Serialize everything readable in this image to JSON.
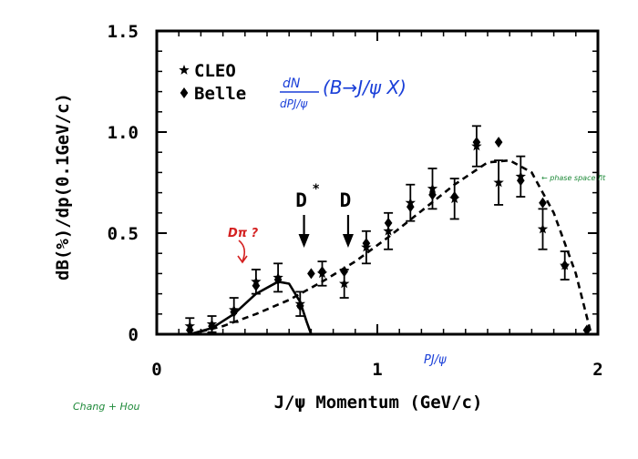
{
  "chart_data": {
    "type": "scatter",
    "xlabel": "J/ψ Momentum (GeV/c)",
    "ylabel": "dB(%)/dp(0.1GeV/c)",
    "xlim": [
      0,
      2
    ],
    "ylim": [
      0,
      1.5
    ],
    "x_ticks": [
      {
        "value": 0,
        "label": "0"
      },
      {
        "value": 1,
        "label": "1"
      },
      {
        "value": 2,
        "label": "2"
      }
    ],
    "y_ticks": [
      {
        "value": 0,
        "label": "0"
      },
      {
        "value": 0.5,
        "label": "0.5"
      },
      {
        "value": 1.0,
        "label": "1.0"
      },
      {
        "value": 1.5,
        "label": "1.5"
      }
    ],
    "grid": false,
    "legend_position": "top-left",
    "series": [
      {
        "name": "CLEO",
        "marker": "star",
        "points": [
          {
            "x": 0.15,
            "y": 0.04,
            "err": 0.04
          },
          {
            "x": 0.25,
            "y": 0.05,
            "err": 0.04
          },
          {
            "x": 0.35,
            "y": 0.12,
            "err": 0.06
          },
          {
            "x": 0.45,
            "y": 0.26,
            "err": 0.06
          },
          {
            "x": 0.55,
            "y": 0.28,
            "err": 0.07
          },
          {
            "x": 0.65,
            "y": 0.15,
            "err": 0.06
          },
          {
            "x": 0.75,
            "y": 0.3,
            "err": 0.06
          },
          {
            "x": 0.85,
            "y": 0.25,
            "err": 0.07
          },
          {
            "x": 0.95,
            "y": 0.43,
            "err": 0.08
          },
          {
            "x": 1.05,
            "y": 0.51,
            "err": 0.09
          },
          {
            "x": 1.15,
            "y": 0.65,
            "err": 0.09
          },
          {
            "x": 1.25,
            "y": 0.72,
            "err": 0.1
          },
          {
            "x": 1.35,
            "y": 0.67,
            "err": 0.1
          },
          {
            "x": 1.45,
            "y": 0.93,
            "err": 0.1
          },
          {
            "x": 1.55,
            "y": 0.75,
            "err": 0.11
          },
          {
            "x": 1.65,
            "y": 0.78,
            "err": 0.1
          },
          {
            "x": 1.75,
            "y": 0.52,
            "err": 0.1
          },
          {
            "x": 1.85,
            "y": 0.34,
            "err": 0.07
          }
        ]
      },
      {
        "name": "Belle",
        "marker": "diamond",
        "points": [
          {
            "x": 0.15,
            "y": 0.02
          },
          {
            "x": 0.25,
            "y": 0.04
          },
          {
            "x": 0.35,
            "y": 0.11
          },
          {
            "x": 0.45,
            "y": 0.24
          },
          {
            "x": 0.55,
            "y": 0.27
          },
          {
            "x": 0.65,
            "y": 0.14
          },
          {
            "x": 0.7,
            "y": 0.3
          },
          {
            "x": 0.75,
            "y": 0.31
          },
          {
            "x": 0.85,
            "y": 0.31
          },
          {
            "x": 0.95,
            "y": 0.45
          },
          {
            "x": 1.05,
            "y": 0.55
          },
          {
            "x": 1.15,
            "y": 0.63
          },
          {
            "x": 1.25,
            "y": 0.69
          },
          {
            "x": 1.35,
            "y": 0.68
          },
          {
            "x": 1.45,
            "y": 0.95
          },
          {
            "x": 1.55,
            "y": 0.95
          },
          {
            "x": 1.65,
            "y": 0.76
          },
          {
            "x": 1.75,
            "y": 0.65
          },
          {
            "x": 1.85,
            "y": 0.34
          },
          {
            "x": 1.95,
            "y": 0.02
          }
        ]
      }
    ],
    "curves": [
      {
        "style": "solid",
        "x": [
          0.15,
          0.25,
          0.35,
          0.45,
          0.55,
          0.6,
          0.65,
          0.68,
          0.7
        ],
        "y": [
          0.0,
          0.03,
          0.1,
          0.2,
          0.26,
          0.25,
          0.16,
          0.06,
          0.0
        ]
      },
      {
        "style": "dashed",
        "x": [
          0.15,
          0.3,
          0.45,
          0.6,
          0.75,
          0.9,
          1.05,
          1.2,
          1.35,
          1.5,
          1.6,
          1.7,
          1.8,
          1.9,
          1.97
        ],
        "y": [
          0.0,
          0.04,
          0.1,
          0.17,
          0.26,
          0.36,
          0.48,
          0.61,
          0.74,
          0.85,
          0.86,
          0.8,
          0.6,
          0.3,
          0.0
        ]
      }
    ],
    "annotations": [
      {
        "label": "D",
        "superscript": "*",
        "x": 0.68
      },
      {
        "label": "D",
        "superscript": "",
        "x": 0.88
      }
    ],
    "handwritten": {
      "formula": "dN/dp J/ψ (B → J/ψ X)",
      "formula_numerator": "dN",
      "formula_denominator": "dPJ/ψ",
      "formula_body": "(B→J/ψ X)",
      "dpi_note": "Dπ ?",
      "phase_space_note": "← phase space fit",
      "p_axis_note": "PJ/ψ",
      "credit": "Chang + Hou"
    },
    "colors": {
      "axis": "#000000",
      "formula_ink": "#1a3fd8",
      "dpi_ink": "#d42020",
      "note_ink": "#1f8a3a"
    }
  }
}
